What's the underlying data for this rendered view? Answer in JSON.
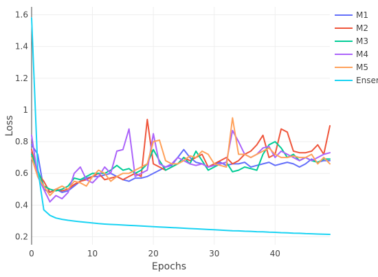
{
  "chart_data": {
    "type": "line",
    "title": "",
    "xlabel": "Epochs",
    "ylabel": "Loss",
    "xlim": [
      0,
      49
    ],
    "ylim": [
      0.15,
      1.65
    ],
    "x_ticks": [
      0,
      10,
      20,
      30,
      40
    ],
    "y_ticks": [
      0.2,
      0.4,
      0.6,
      0.8,
      1,
      1.2,
      1.4,
      1.6
    ],
    "grid": true,
    "legend_position": "top-right",
    "series": [
      {
        "name": "M1",
        "color": "#636efa",
        "values": [
          0.78,
          0.72,
          0.5,
          0.48,
          0.5,
          0.48,
          0.49,
          0.52,
          0.55,
          0.57,
          0.58,
          0.58,
          0.59,
          0.6,
          0.58,
          0.56,
          0.55,
          0.57,
          0.57,
          0.58,
          0.6,
          0.62,
          0.64,
          0.65,
          0.7,
          0.75,
          0.7,
          0.67,
          0.66,
          0.64,
          0.66,
          0.67,
          0.65,
          0.66,
          0.66,
          0.67,
          0.64,
          0.65,
          0.66,
          0.67,
          0.65,
          0.66,
          0.67,
          0.66,
          0.64,
          0.66,
          0.69,
          0.67,
          0.68,
          0.68
        ]
      },
      {
        "name": "M2",
        "color": "#ef553b",
        "values": [
          0.75,
          0.6,
          0.55,
          0.48,
          0.5,
          0.49,
          0.5,
          0.53,
          0.55,
          0.56,
          0.58,
          0.6,
          0.56,
          0.57,
          0.58,
          0.56,
          0.58,
          0.6,
          0.58,
          0.94,
          0.66,
          0.64,
          0.62,
          0.64,
          0.66,
          0.7,
          0.68,
          0.7,
          0.72,
          0.64,
          0.66,
          0.68,
          0.7,
          0.66,
          0.68,
          0.72,
          0.74,
          0.78,
          0.84,
          0.7,
          0.72,
          0.88,
          0.86,
          0.74,
          0.73,
          0.73,
          0.74,
          0.78,
          0.72,
          0.9
        ]
      },
      {
        "name": "M3",
        "color": "#00cc96",
        "values": [
          0.72,
          0.62,
          0.52,
          0.5,
          0.49,
          0.5,
          0.52,
          0.57,
          0.56,
          0.58,
          0.6,
          0.6,
          0.6,
          0.62,
          0.65,
          0.62,
          0.63,
          0.6,
          0.62,
          0.66,
          0.75,
          0.68,
          0.62,
          0.64,
          0.66,
          0.7,
          0.66,
          0.74,
          0.68,
          0.62,
          0.64,
          0.66,
          0.67,
          0.61,
          0.62,
          0.64,
          0.63,
          0.62,
          0.72,
          0.78,
          0.8,
          0.76,
          0.7,
          0.72,
          0.68,
          0.7,
          0.68,
          0.67,
          0.69,
          0.69
        ]
      },
      {
        "name": "M4",
        "color": "#ab63fa",
        "values": [
          0.84,
          0.58,
          0.5,
          0.42,
          0.46,
          0.44,
          0.48,
          0.6,
          0.64,
          0.56,
          0.54,
          0.58,
          0.64,
          0.6,
          0.74,
          0.75,
          0.88,
          0.58,
          0.6,
          0.62,
          0.85,
          0.66,
          0.64,
          0.66,
          0.7,
          0.68,
          0.66,
          0.65,
          0.66,
          0.64,
          0.65,
          0.66,
          0.67,
          0.87,
          0.8,
          0.72,
          0.7,
          0.72,
          0.76,
          0.77,
          0.7,
          0.74,
          0.72,
          0.7,
          0.68,
          0.7,
          0.68,
          0.7,
          0.72,
          0.73
        ]
      },
      {
        "name": "M5",
        "color": "#ffa15a",
        "values": [
          0.7,
          0.58,
          0.52,
          0.46,
          0.5,
          0.52,
          0.5,
          0.55,
          0.54,
          0.52,
          0.58,
          0.62,
          0.6,
          0.55,
          0.58,
          0.6,
          0.6,
          0.62,
          0.64,
          0.66,
          0.8,
          0.81,
          0.68,
          0.66,
          0.66,
          0.68,
          0.71,
          0.7,
          0.74,
          0.72,
          0.66,
          0.65,
          0.64,
          0.95,
          0.72,
          0.72,
          0.7,
          0.72,
          0.74,
          0.76,
          0.72,
          0.7,
          0.7,
          0.71,
          0.7,
          0.7,
          0.72,
          0.66,
          0.7,
          0.66
        ]
      },
      {
        "name": "Ensemble",
        "color": "#19d3f3",
        "values": [
          1.58,
          0.63,
          0.37,
          0.335,
          0.318,
          0.31,
          0.304,
          0.299,
          0.295,
          0.291,
          0.287,
          0.283,
          0.28,
          0.278,
          0.276,
          0.274,
          0.272,
          0.27,
          0.268,
          0.266,
          0.264,
          0.262,
          0.26,
          0.258,
          0.256,
          0.254,
          0.252,
          0.25,
          0.248,
          0.246,
          0.244,
          0.242,
          0.24,
          0.238,
          0.237,
          0.235,
          0.234,
          0.232,
          0.231,
          0.229,
          0.228,
          0.226,
          0.225,
          0.223,
          0.222,
          0.22,
          0.219,
          0.217,
          0.216,
          0.215
        ]
      }
    ]
  }
}
